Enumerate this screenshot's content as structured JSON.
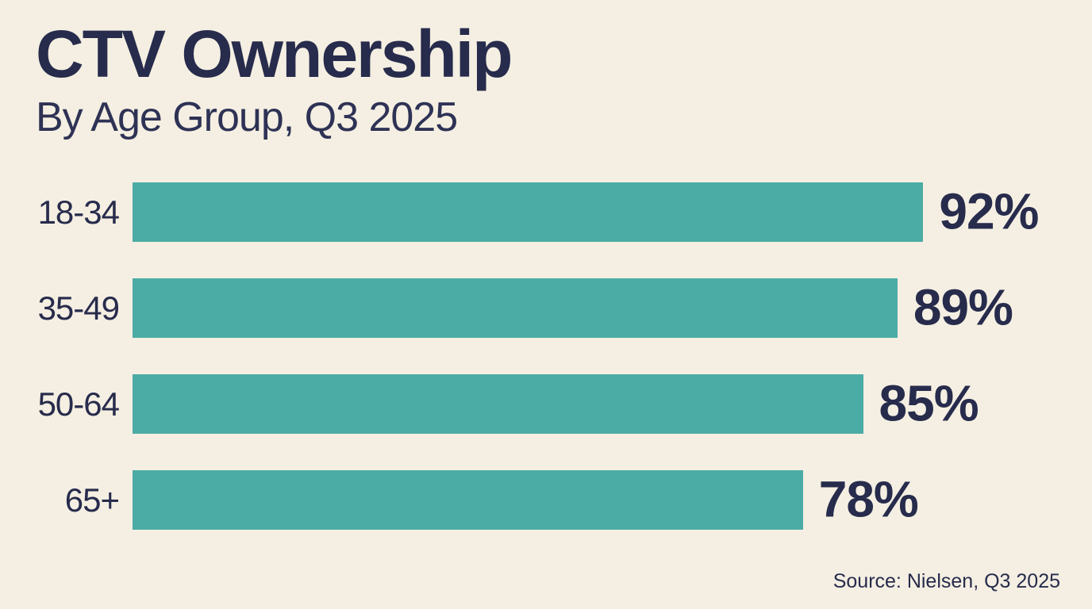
{
  "page": {
    "title": "CTV Ownership",
    "subtitle": "By Age Group, Q3 2025",
    "source": "Source: Nielsen, Q3 2025"
  },
  "chart_data": {
    "type": "bar",
    "orientation": "horizontal",
    "title": "CTV Ownership",
    "subtitle": "By Age Group, Q3 2025",
    "categories": [
      "18-34",
      "35-49",
      "50-64",
      "65+"
    ],
    "values": [
      92,
      89,
      85,
      78
    ],
    "value_labels": [
      "92%",
      "89%",
      "85%",
      "78%"
    ],
    "xlabel": "",
    "ylabel": "",
    "xlim": [
      0,
      100
    ],
    "grid": false,
    "legend": false,
    "source": "Source: Nielsen, Q3 2025",
    "colors": {
      "background": "#F4EFE2",
      "bar": "#4BACA5",
      "text": "#272B4C"
    }
  }
}
